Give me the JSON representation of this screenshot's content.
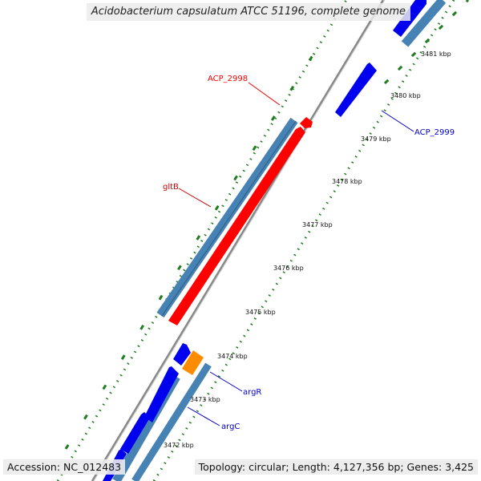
{
  "title": "Acidobacterium capsulatum ATCC 51196, complete genome",
  "accession": "Accession: NC_012483",
  "topology": "Topology: circular; Length: 4,127,356 bp; Genes: 3,425",
  "ticks": [
    "3472 kbp",
    "3473 kbp",
    "3474 kbp",
    "3475 kbp",
    "3476 kbp",
    "3477 kbp",
    "3478 kbp",
    "3479 kbp",
    "3480 kbp",
    "3481 kbp"
  ],
  "genes": [
    {
      "name": "ACP_2998",
      "color": "#ee0000",
      "strand": "reverse"
    },
    {
      "name": "gltB",
      "color": "#cc0000",
      "strand": "reverse"
    },
    {
      "name": "ACP_2999",
      "color": "#0000cc",
      "strand": "forward"
    },
    {
      "name": "argR",
      "color": "#0000cc",
      "strand": "forward"
    },
    {
      "name": "argC",
      "color": "#0000cc",
      "strand": "forward"
    }
  ],
  "colors": {
    "forward_cds": "#0000ee",
    "reverse_cds": "#ff0000",
    "rna": "#ff8c00",
    "feature_track": "#4682b4",
    "backbone": "#888888",
    "gc_dots": "#1e7d1e"
  }
}
